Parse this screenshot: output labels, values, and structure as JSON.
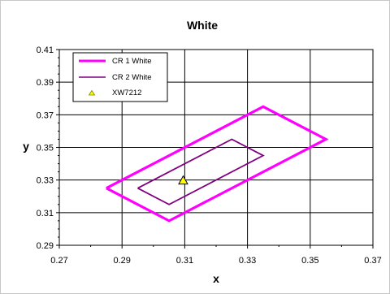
{
  "chart_data": {
    "type": "line",
    "title": "White",
    "xlabel": "x",
    "ylabel": "y",
    "xlim": [
      0.27,
      0.37
    ],
    "ylim": [
      0.29,
      0.41
    ],
    "x_ticks": [
      0.27,
      0.29,
      0.31,
      0.33,
      0.35,
      0.37
    ],
    "x_tick_labels": [
      "0.27",
      "0.29",
      "0.31",
      "0.33",
      "0.35",
      "0.37"
    ],
    "y_ticks": [
      0.29,
      0.31,
      0.33,
      0.35,
      0.37,
      0.39,
      0.41
    ],
    "y_tick_labels": [
      "0.29",
      "0.31",
      "0.33",
      "0.35",
      "0.37",
      "0.39",
      "0.41"
    ],
    "grid": true,
    "legend_position": "top-left",
    "series": [
      {
        "name": "CR 1 White",
        "color": "#ff00ff",
        "style": "line-thick",
        "points": [
          [
            0.285,
            0.325
          ],
          [
            0.335,
            0.375
          ],
          [
            0.355,
            0.355
          ],
          [
            0.305,
            0.305
          ],
          [
            0.285,
            0.325
          ]
        ]
      },
      {
        "name": "CR 2 White",
        "color": "#800080",
        "style": "line-thin",
        "points": [
          [
            0.295,
            0.325
          ],
          [
            0.325,
            0.355
          ],
          [
            0.335,
            0.345
          ],
          [
            0.305,
            0.315
          ],
          [
            0.295,
            0.325
          ]
        ]
      },
      {
        "name": "XW7212",
        "color": "#ffff00",
        "style": "triangle-marker",
        "points": [
          [
            0.3095,
            0.3295
          ]
        ]
      }
    ]
  }
}
